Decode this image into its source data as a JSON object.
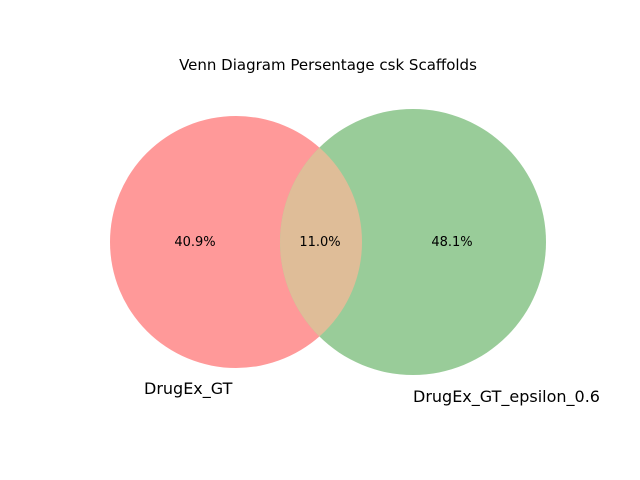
{
  "title": "Venn Diagram Persentage csk Scaffolds",
  "sets": [
    {
      "name": "DrugEx_GT",
      "color": "#ff9999",
      "region_label": "40.9%"
    },
    {
      "name": "DrugEx_GT_epsilon_0.6",
      "color": "#99cc99",
      "region_label": "48.1%"
    }
  ],
  "intersection": {
    "color": "#dfbd98",
    "region_label": "11.0%"
  }
}
